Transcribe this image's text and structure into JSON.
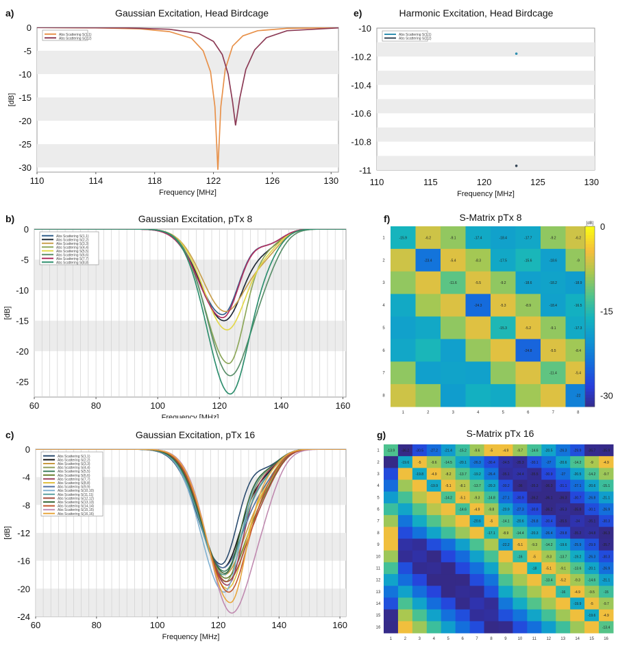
{
  "chart_data": [
    {
      "panel": "a",
      "type": "line",
      "label": "a)",
      "title": "Gaussian Excitation, Head Birdcage",
      "xlabel": "Frequency [MHz]",
      "ylabel": "[dB]",
      "xlim": [
        110,
        130.5
      ],
      "ylim": [
        -31,
        0
      ],
      "xticks": [
        110,
        114,
        118,
        122,
        126,
        130
      ],
      "yticks": [
        0,
        -5,
        -10,
        -15,
        -20,
        -25,
        -30
      ],
      "legend": "top-left",
      "series": [
        {
          "name": "Abs Scattering S(1,1)",
          "color": "#e8914a",
          "x": [
            110,
            114,
            117,
            119,
            120.5,
            121.3,
            121.8,
            122.1,
            122.3,
            122.5,
            122.8,
            123.3,
            124,
            125,
            127,
            130.5
          ],
          "y": [
            -0.02,
            -0.1,
            -0.3,
            -0.9,
            -2.3,
            -5,
            -9.5,
            -17,
            -30.5,
            -17,
            -9,
            -4,
            -1.8,
            -0.7,
            -0.2,
            -0.05
          ]
        },
        {
          "name": "Abs Scattering S(2,2)",
          "color": "#8b3a55",
          "x": [
            110,
            116,
            119,
            121,
            122,
            122.6,
            123,
            123.3,
            123.5,
            123.8,
            124.2,
            124.8,
            125.6,
            127,
            130.5
          ],
          "y": [
            -0.02,
            -0.1,
            -0.4,
            -1.3,
            -3,
            -5.8,
            -10,
            -16,
            -21,
            -15,
            -9,
            -4.8,
            -2.2,
            -0.7,
            -0.1
          ]
        }
      ]
    },
    {
      "panel": "e",
      "type": "scatter",
      "label": "e)",
      "title": "Harmonic Excitation, Head Birdcage",
      "xlabel": "Frequency [MHz]",
      "ylabel": "[dB]",
      "xlim": [
        110,
        130.3
      ],
      "ylim": [
        -11,
        -10
      ],
      "xticks": [
        110,
        115,
        120,
        125,
        130
      ],
      "yticks": [
        -10,
        -10.2,
        -10.4,
        -10.6,
        -10.8,
        -11
      ],
      "legend": "top-left",
      "series": [
        {
          "name": "Abs Scattering S(1,1)",
          "color": "#2f8fb0",
          "x": [
            123
          ],
          "y": [
            -10.18
          ]
        },
        {
          "name": "Abs Scattering S(2,2)",
          "color": "#334455",
          "x": [
            123
          ],
          "y": [
            -10.97
          ]
        }
      ]
    },
    {
      "panel": "b",
      "type": "line",
      "label": "b)",
      "title": "Gaussian Excitation, pTx 8",
      "xlabel": "Frequency [MHz]",
      "ylabel": "[dB]",
      "xlim": [
        60,
        161
      ],
      "ylim": [
        -27.5,
        0
      ],
      "xticks": [
        60,
        80,
        100,
        120,
        140,
        160
      ],
      "yticks": [
        0,
        -5,
        -10,
        -15,
        -20,
        -25
      ],
      "legend": "top-left",
      "series": [
        {
          "name": "Abs Scattering S(1,1)",
          "color": "#2f5d8a",
          "depth": -14,
          "center": 121
        },
        {
          "name": "Abs Scattering S(2,2)",
          "color": "#1f2a36",
          "depth": -15,
          "center": 121.5
        },
        {
          "name": "Abs Scattering S(3,3)",
          "color": "#c9a04d",
          "depth": -13.5,
          "center": 122
        },
        {
          "name": "Abs Scattering S(4,4)",
          "color": "#8da75a",
          "depth": -22,
          "center": 123
        },
        {
          "name": "Abs Scattering S(5,5)",
          "color": "#e3d84a",
          "depth": -16.5,
          "center": 122.5
        },
        {
          "name": "Abs Scattering S(6,6)",
          "color": "#5a8f6a",
          "depth": -24,
          "center": 123.5
        },
        {
          "name": "Abs Scattering S(7,7)",
          "color": "#b03060",
          "depth": -14.5,
          "center": 121
        },
        {
          "name": "Abs Scattering S(8,8)",
          "color": "#2e8f6e",
          "depth": -27,
          "center": 123.5
        }
      ]
    },
    {
      "panel": "c",
      "type": "line",
      "label": "c)",
      "title": "Gaussian Excitation, pTx 16",
      "xlabel": "Frequency [MHz]",
      "ylabel": "[dB]",
      "xlim": [
        60,
        162
      ],
      "ylim": [
        -24,
        0
      ],
      "xticks": [
        60,
        80,
        100,
        120,
        140,
        160
      ],
      "yticks": [
        0,
        -4,
        -8,
        -12,
        -16,
        -20,
        -24
      ],
      "legend": "top-left",
      "series": [
        {
          "name": "Abs Scattering S(1,1)",
          "color": "#2b4c6f",
          "depth": -16.5,
          "center": 121
        },
        {
          "name": "Abs Scattering S(2,2)",
          "color": "#111111",
          "depth": -17,
          "center": 121.5
        },
        {
          "name": "Abs Scattering S(3,3)",
          "color": "#c9993f",
          "depth": -18,
          "center": 122
        },
        {
          "name": "Abs Scattering S(4,4)",
          "color": "#8e9e5a",
          "depth": -19,
          "center": 122.5
        },
        {
          "name": "Abs Scattering S(5,5)",
          "color": "#3e7f5e",
          "depth": -17.5,
          "center": 122
        },
        {
          "name": "Abs Scattering S(6,6)",
          "color": "#6a7f2e",
          "depth": -18.5,
          "center": 122.5
        },
        {
          "name": "Abs Scattering S(7,7)",
          "color": "#9c3d5a",
          "depth": -19.5,
          "center": 123
        },
        {
          "name": "Abs Scattering S(8,8)",
          "color": "#e0c040",
          "depth": -20,
          "center": 123
        },
        {
          "name": "Abs Scattering S(9,9)",
          "color": "#4f6fa0",
          "depth": -17,
          "center": 121.5
        },
        {
          "name": "Abs Scattering S(10,10)",
          "color": "#7fb0d0",
          "depth": -20.5,
          "center": 122
        },
        {
          "name": "Abs Scattering S(11,11)",
          "color": "#5aa0a0",
          "depth": -18,
          "center": 121.8
        },
        {
          "name": "Abs Scattering S(12,12)",
          "color": "#a34a3a",
          "depth": -19,
          "center": 122.8
        },
        {
          "name": "Abs Scattering S(13,13)",
          "color": "#3a6a3a",
          "depth": -17.8,
          "center": 122.2
        },
        {
          "name": "Abs Scattering S(14,14)",
          "color": "#c2562d",
          "depth": -20.5,
          "center": 123.5
        },
        {
          "name": "Abs Scattering S(15,15)",
          "color": "#c08ab0",
          "depth": -23.5,
          "center": 124.5
        },
        {
          "name": "Abs Scattering S(16,16)",
          "color": "#e8a63e",
          "depth": -22,
          "center": 124
        }
      ]
    },
    {
      "panel": "f",
      "type": "heatmap",
      "label": "f)",
      "title": "S-Matrix pTx 8",
      "colorbar_unit": "[dB]",
      "colorbar_ticks": [
        0,
        -15,
        -30
      ],
      "zlim": [
        -32,
        0
      ],
      "axis_labels": [
        "1",
        "2",
        "3",
        "4",
        "5",
        "6",
        "7",
        "8"
      ],
      "annotations": [
        [
          0,
          0,
          "-15.9"
        ],
        [
          0,
          1,
          "-6.2"
        ],
        [
          0,
          2,
          "-9.1"
        ],
        [
          0,
          3,
          "-17.4"
        ],
        [
          0,
          4,
          "-18.4"
        ],
        [
          0,
          5,
          "-17.7"
        ],
        [
          0,
          6,
          "-9.2"
        ],
        [
          0,
          7,
          "-6.2"
        ],
        [
          1,
          1,
          "-23.4"
        ],
        [
          1,
          2,
          "-5.4"
        ],
        [
          1,
          3,
          "-8.3"
        ],
        [
          1,
          4,
          "-17.5"
        ],
        [
          1,
          5,
          "-15.6"
        ],
        [
          1,
          6,
          "-18.6"
        ],
        [
          1,
          7,
          "-9"
        ],
        [
          2,
          2,
          "-11.6"
        ],
        [
          2,
          3,
          "-5.5"
        ],
        [
          2,
          4,
          "-9.2"
        ],
        [
          2,
          5,
          "-18.6"
        ],
        [
          2,
          6,
          "-18.2"
        ],
        [
          2,
          7,
          "-18.9"
        ],
        [
          3,
          3,
          "-24.3"
        ],
        [
          3,
          4,
          "-5.3"
        ],
        [
          3,
          5,
          "-8.9"
        ],
        [
          3,
          6,
          "-18.4"
        ],
        [
          3,
          7,
          "-16.5"
        ],
        [
          4,
          4,
          "-15.3"
        ],
        [
          4,
          5,
          "-5.2"
        ],
        [
          4,
          6,
          "-9.1"
        ],
        [
          4,
          7,
          "-17.3"
        ],
        [
          5,
          5,
          "-24.8"
        ],
        [
          5,
          6,
          "-5.5"
        ],
        [
          5,
          7,
          "-8.4"
        ],
        [
          6,
          6,
          "-11.4"
        ],
        [
          6,
          7,
          "-5.4"
        ],
        [
          7,
          7,
          "-22"
        ]
      ]
    },
    {
      "panel": "g",
      "type": "heatmap",
      "label": "g)",
      "title": "S-Matrix pTx 16",
      "zlim": [
        -36,
        0
      ],
      "axis_labels": [
        "1",
        "2",
        "3",
        "4",
        "5",
        "6",
        "7",
        "8",
        "9",
        "10",
        "11",
        "12",
        "13",
        "14",
        "15",
        "16"
      ],
      "rows": [
        [
          "-13.9",
          "-36.2",
          "-30.5",
          "-27.2",
          "-21.4",
          "-15.2",
          "-9.6",
          "-5",
          "-4.9",
          "-9.7",
          "-14.6",
          "-20.5",
          "-26.3",
          "-29.9",
          "-35.7",
          "-35.9"
        ],
        [
          "",
          "-19.6",
          "-5",
          "-9.6",
          "-14.5",
          "-20.1",
          "-26.3",
          "-30.4",
          "-34.5",
          "-35.3",
          "-30.1",
          "-27",
          "-20.6",
          "-14.2",
          "-9",
          "-4.9"
        ],
        [
          "",
          "",
          "-19.8",
          "-4.9",
          "-8.2",
          "-13.7",
          "-19.2",
          "-26.4",
          "-35.1",
          "-34.4",
          "-35.5",
          "-30.9",
          "-27",
          "-20.5",
          "-14.2",
          "-9.7"
        ],
        [
          "",
          "",
          "",
          "-19.9",
          "-5.1",
          "-8.1",
          "-13.7",
          "-20.3",
          "-30.2",
          "-36",
          "-35.3",
          "-36.3",
          "-31.1",
          "-27.1",
          "-20.6",
          "-15.1"
        ],
        [
          "",
          "",
          "",
          "",
          "-14.2",
          "-5.1",
          "-9.3",
          "-14.8",
          "-27.1",
          "-30.9",
          "-36.2",
          "-36.1",
          "-36.3",
          "-30.7",
          "-26.8",
          "-21.1"
        ],
        [
          "",
          "",
          "",
          "",
          "",
          "-14.6",
          "-4.9",
          "-9.8",
          "-20.9",
          "-27.3",
          "-30.8",
          "-36.2",
          "-35.3",
          "-35.8",
          "-30.1",
          "-26.9"
        ],
        [
          "",
          "",
          "",
          "",
          "",
          "",
          "-20.6",
          "-5",
          "-14.1",
          "-20.6",
          "-26.8",
          "-30.4",
          "-35.5",
          "-34",
          "-35.1",
          "-30.3"
        ],
        [
          "",
          "",
          "",
          "",
          "",
          "",
          "",
          "-17.1",
          "-8.9",
          "-14.4",
          "-20.3",
          "-26.4",
          "-29.8",
          "-35.2",
          "-34.8",
          "-36.3"
        ],
        [
          "",
          "",
          "",
          "",
          "",
          "",
          "",
          "",
          "-22.2",
          "-5.1",
          "-9.3",
          "-14.2",
          "-19.6",
          "-25.9",
          "-29.9",
          "-35.7"
        ],
        [
          "",
          "",
          "",
          "",
          "",
          "",
          "",
          "",
          "",
          "-16",
          "-5",
          "-9.3",
          "-13.7",
          "-19.2",
          "-26.3",
          "-30.3"
        ],
        [
          "",
          "",
          "",
          "",
          "",
          "",
          "",
          "",
          "",
          "",
          "-18",
          "-5.1",
          "-9.1",
          "-13.6",
          "-20.1",
          "-26.9"
        ],
        [
          "",
          "",
          "",
          "",
          "",
          "",
          "",
          "",
          "",
          "",
          "",
          "-13.4",
          "-5.2",
          "-9.3",
          "-14.6",
          "-21.1"
        ],
        [
          "",
          "",
          "",
          "",
          "",
          "",
          "",
          "",
          "",
          "",
          "",
          "",
          "-16",
          "-4.9",
          "-9.5",
          "-15"
        ],
        [
          "",
          "",
          "",
          "",
          "",
          "",
          "",
          "",
          "",
          "",
          "",
          "",
          "",
          "-19.9",
          "-5",
          "-9.7"
        ],
        [
          "",
          "",
          "",
          "",
          "",
          "",
          "",
          "",
          "",
          "",
          "",
          "",
          "",
          "",
          "-19.6",
          "-4.9"
        ],
        [
          "",
          "",
          "",
          "",
          "",
          "",
          "",
          "",
          "",
          "",
          "",
          "",
          "",
          "",
          "",
          "-13.4"
        ]
      ]
    }
  ]
}
